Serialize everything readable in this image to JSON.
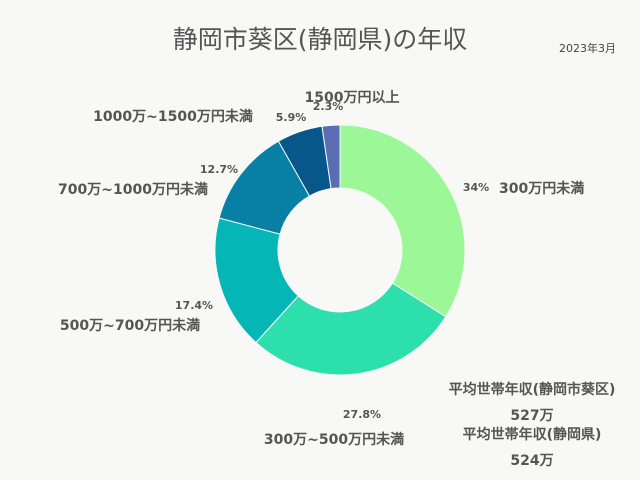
{
  "title": "静岡市葵区(静岡県)の年収",
  "date": "2023年3月",
  "averages": [
    {
      "label": "平均世帯年収(静岡市葵区)",
      "value": "527万"
    },
    {
      "label": "平均世帯年収(静岡県)",
      "value": "524万"
    }
  ],
  "chart_data": {
    "type": "pie",
    "donut": true,
    "categories": [
      "300万円未満",
      "300万~500万円未満",
      "500万~700万円未満",
      "700万~1000万円未満",
      "1000万~1500万円未満",
      "1500万円以上"
    ],
    "values": [
      34,
      27.8,
      17.4,
      12.7,
      5.9,
      2.3
    ],
    "value_labels": [
      "34%",
      "27.8%",
      "17.4%",
      "12.7%",
      "5.9%",
      "2.3%"
    ],
    "colors": [
      "#9cf797",
      "#2ddfad",
      "#05b6b7",
      "#087fa5",
      "#07578a",
      "#5b6db2"
    ]
  }
}
